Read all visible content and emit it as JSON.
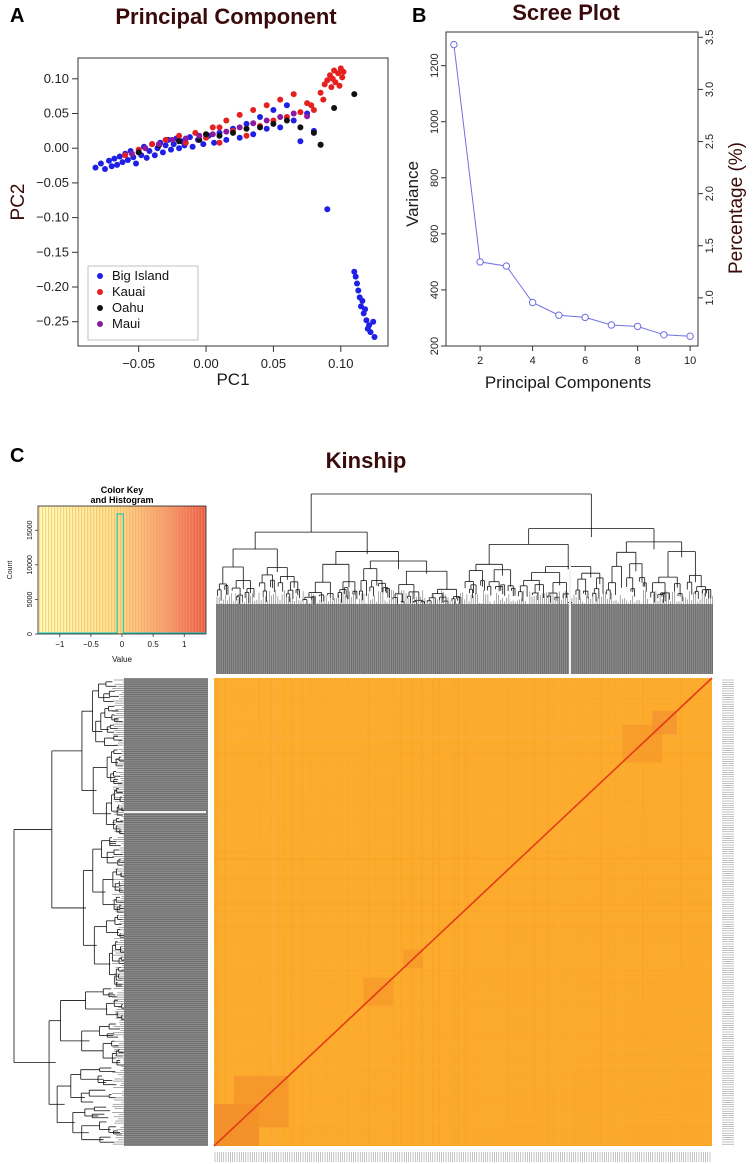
{
  "panels": {
    "a_letter": "A",
    "b_letter": "B",
    "c_letter": "C"
  },
  "chart_data": [
    {
      "type": "scatter",
      "title": "Principal Component",
      "xlabel": "PC1",
      "ylabel": "PC2",
      "xlim": [
        -0.095,
        0.135
      ],
      "ylim": [
        -0.285,
        0.13
      ],
      "xticks": [
        -0.05,
        0.0,
        0.05,
        0.1
      ],
      "xtick_labels": [
        "−0.05",
        "0.00",
        "0.05",
        "0.10"
      ],
      "yticks": [
        0.1,
        0.05,
        0.0,
        -0.05,
        -0.1,
        -0.15,
        -0.2,
        -0.25
      ],
      "ytick_labels": [
        "0.10",
        "0.05",
        "0.00",
        "−0.05",
        "−0.10",
        "−0.15",
        "−0.20",
        "−0.25"
      ],
      "legend_position": "bottom-left",
      "series": [
        {
          "name": "Big Island",
          "color": "#1f1fe6",
          "points": [
            [
              -0.082,
              -0.028
            ],
            [
              -0.078,
              -0.022
            ],
            [
              -0.075,
              -0.03
            ],
            [
              -0.072,
              -0.018
            ],
            [
              -0.07,
              -0.026
            ],
            [
              -0.068,
              -0.015
            ],
            [
              -0.066,
              -0.024
            ],
            [
              -0.064,
              -0.012
            ],
            [
              -0.062,
              -0.02
            ],
            [
              -0.06,
              -0.008
            ],
            [
              -0.058,
              -0.017
            ],
            [
              -0.056,
              -0.004
            ],
            [
              -0.054,
              -0.013
            ],
            [
              -0.052,
              -0.022
            ],
            [
              -0.05,
              -0.006
            ],
            [
              -0.048,
              -0.01
            ],
            [
              -0.046,
              0.002
            ],
            [
              -0.044,
              -0.014
            ],
            [
              -0.042,
              -0.004
            ],
            [
              -0.04,
              0.006
            ],
            [
              -0.038,
              -0.01
            ],
            [
              -0.036,
              0.0
            ],
            [
              -0.034,
              0.008
            ],
            [
              -0.032,
              -0.006
            ],
            [
              -0.03,
              0.004
            ],
            [
              -0.028,
              0.012
            ],
            [
              -0.026,
              -0.002
            ],
            [
              -0.024,
              0.006
            ],
            [
              -0.022,
              0.014
            ],
            [
              -0.02,
              0.0
            ],
            [
              -0.018,
              0.01
            ],
            [
              -0.016,
              0.004
            ],
            [
              -0.012,
              0.016
            ],
            [
              -0.01,
              0.002
            ],
            [
              -0.006,
              0.012
            ],
            [
              -0.002,
              0.006
            ],
            [
              0.002,
              0.018
            ],
            [
              0.006,
              0.008
            ],
            [
              0.01,
              0.022
            ],
            [
              0.015,
              0.012
            ],
            [
              0.02,
              0.028
            ],
            [
              0.025,
              0.015
            ],
            [
              0.03,
              0.035
            ],
            [
              0.035,
              0.02
            ],
            [
              0.04,
              0.045
            ],
            [
              0.045,
              0.028
            ],
            [
              0.05,
              0.055
            ],
            [
              0.055,
              0.03
            ],
            [
              0.06,
              0.062
            ],
            [
              0.065,
              0.04
            ],
            [
              0.07,
              0.01
            ],
            [
              0.075,
              0.05
            ],
            [
              0.08,
              0.025
            ],
            [
              0.085,
              0.005
            ],
            [
              0.09,
              -0.088
            ],
            [
              0.11,
              -0.178
            ],
            [
              0.111,
              -0.185
            ],
            [
              0.112,
              -0.195
            ],
            [
              0.113,
              -0.205
            ],
            [
              0.114,
              -0.215
            ],
            [
              0.115,
              -0.228
            ],
            [
              0.117,
              -0.238
            ],
            [
              0.119,
              -0.248
            ],
            [
              0.12,
              -0.26
            ],
            [
              0.121,
              -0.255
            ],
            [
              0.122,
              -0.265
            ],
            [
              0.124,
              -0.25
            ],
            [
              0.125,
              -0.272
            ],
            [
              0.118,
              -0.232
            ],
            [
              0.116,
              -0.22
            ]
          ]
        },
        {
          "name": "Kauai",
          "color": "#e61f1f",
          "points": [
            [
              -0.06,
              -0.01
            ],
            [
              -0.05,
              -0.002
            ],
            [
              -0.04,
              0.006
            ],
            [
              -0.03,
              0.012
            ],
            [
              -0.02,
              0.018
            ],
            [
              -0.015,
              0.008
            ],
            [
              -0.008,
              0.022
            ],
            [
              0.0,
              0.015
            ],
            [
              0.005,
              0.03
            ],
            [
              0.01,
              0.008
            ],
            [
              0.015,
              0.04
            ],
            [
              0.02,
              0.025
            ],
            [
              0.025,
              0.048
            ],
            [
              0.03,
              0.018
            ],
            [
              0.035,
              0.055
            ],
            [
              0.04,
              0.032
            ],
            [
              0.045,
              0.062
            ],
            [
              0.05,
              0.04
            ],
            [
              0.055,
              0.07
            ],
            [
              0.06,
              0.045
            ],
            [
              0.065,
              0.078
            ],
            [
              0.07,
              0.052
            ],
            [
              0.075,
              0.065
            ],
            [
              0.08,
              0.055
            ],
            [
              0.085,
              0.08
            ],
            [
              0.088,
              0.092
            ],
            [
              0.09,
              0.098
            ],
            [
              0.092,
              0.105
            ],
            [
              0.094,
              0.1
            ],
            [
              0.095,
              0.112
            ],
            [
              0.096,
              0.095
            ],
            [
              0.098,
              0.108
            ],
            [
              0.1,
              0.115
            ],
            [
              0.101,
              0.102
            ],
            [
              0.102,
              0.11
            ],
            [
              0.099,
              0.09
            ],
            [
              0.093,
              0.088
            ],
            [
              0.087,
              0.07
            ],
            [
              0.078,
              0.062
            ],
            [
              0.01,
              0.03
            ]
          ]
        },
        {
          "name": "Oahu",
          "color": "#111111",
          "points": [
            [
              -0.05,
              -0.006
            ],
            [
              -0.035,
              0.004
            ],
            [
              -0.02,
              0.01
            ],
            [
              -0.005,
              0.012
            ],
            [
              0.0,
              0.02
            ],
            [
              0.01,
              0.018
            ],
            [
              0.02,
              0.022
            ],
            [
              0.03,
              0.028
            ],
            [
              0.04,
              0.03
            ],
            [
              0.05,
              0.035
            ],
            [
              0.06,
              0.04
            ],
            [
              0.07,
              0.03
            ],
            [
              0.08,
              0.022
            ],
            [
              0.085,
              0.005
            ],
            [
              0.095,
              0.058
            ],
            [
              0.11,
              0.078
            ]
          ]
        },
        {
          "name": "Maui",
          "color": "#8b1a9e",
          "points": [
            [
              -0.055,
              -0.008
            ],
            [
              -0.045,
              0.0
            ],
            [
              -0.035,
              0.006
            ],
            [
              -0.025,
              0.012
            ],
            [
              -0.015,
              0.014
            ],
            [
              -0.005,
              0.018
            ],
            [
              0.005,
              0.02
            ],
            [
              0.015,
              0.024
            ],
            [
              0.025,
              0.03
            ],
            [
              0.035,
              0.036
            ],
            [
              0.045,
              0.04
            ],
            [
              0.055,
              0.045
            ],
            [
              0.065,
              0.05
            ],
            [
              0.075,
              0.046
            ]
          ]
        }
      ]
    },
    {
      "type": "line",
      "title": "Scree Plot",
      "xlabel": "Principal Components",
      "ylabel": "Variance",
      "ylabel_right": "Percentage  (%)",
      "color": "#7070e0",
      "x": [
        1,
        2,
        3,
        4,
        5,
        6,
        7,
        8,
        9,
        10
      ],
      "values": [
        1275,
        500,
        485,
        355,
        310,
        302,
        275,
        270,
        240,
        235
      ],
      "xlim": [
        0.7,
        10.3
      ],
      "ylim": [
        200,
        1320
      ],
      "xticks": [
        2,
        4,
        6,
        8,
        10
      ],
      "xtick_labels": [
        "2",
        "4",
        "6",
        "8",
        "10"
      ],
      "yticks": [
        200,
        400,
        600,
        800,
        1000,
        1200
      ],
      "ytick_labels": [
        "200",
        "400",
        "600",
        "800",
        "1000",
        "1200"
      ],
      "right_ylim": [
        0.538,
        3.551
      ],
      "right_ticks": [
        1.0,
        1.5,
        2.0,
        2.5,
        3.0,
        3.5
      ],
      "right_tick_labels": [
        "1.0",
        "1.5",
        "2.0",
        "2.5",
        "3.0",
        "3.5"
      ]
    },
    {
      "type": "heatmap",
      "title": "Kinship",
      "color_key": {
        "title_line1": "Color Key",
        "title_line2": "and Histogram",
        "xlabel": "Value",
        "ylabel": "Count",
        "xticks": [
          -1,
          -0.5,
          0,
          0.5,
          1
        ],
        "xtick_labels": [
          "−1",
          "−0.5",
          "0",
          "0.5",
          "1"
        ],
        "yticks": [
          0,
          5000,
          10000,
          15000
        ],
        "ytick_labels": [
          "0",
          "5000",
          "10000",
          "15000"
        ],
        "xlim": [
          -1.35,
          1.35
        ],
        "ylim": [
          0,
          18500
        ]
      },
      "colors": {
        "low": "#ffffb0",
        "mid": "#fdb93a",
        "high": "#e8401c",
        "diagonal": "#e83b1c",
        "base": "#fdac2c"
      }
    }
  ]
}
